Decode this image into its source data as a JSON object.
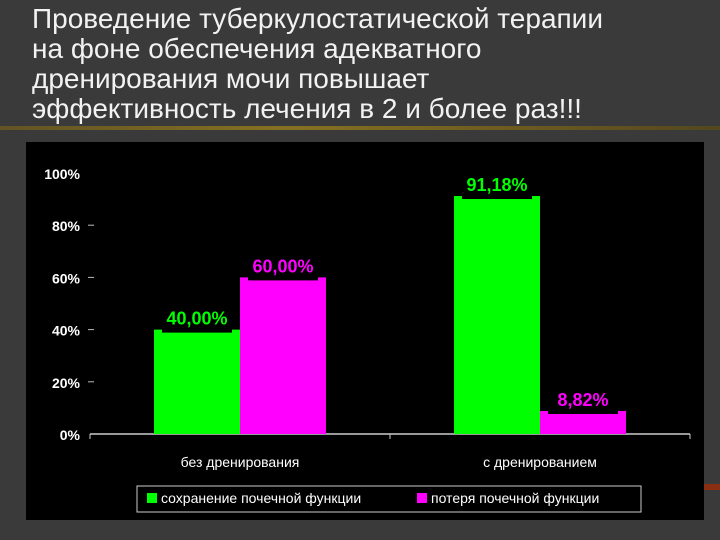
{
  "slide": {
    "title_lines": [
      "Проведение туберкулостатической терапии",
      "на фоне обеспечения адекватного",
      "дренирования мочи повышает",
      "эффективность лечения в 2 и более раз!!!"
    ]
  },
  "chart_data": {
    "type": "bar",
    "categories": [
      "без дренирования",
      "с дренированием"
    ],
    "series": [
      {
        "name": "сохранение почечной функции",
        "values": [
          40.0,
          91.18
        ],
        "labels": [
          "40,00%",
          "91,18%"
        ],
        "color": "#00ff00"
      },
      {
        "name": "потеря почечной функции",
        "values": [
          60.0,
          8.82
        ],
        "labels": [
          "60,00%",
          "8,82%"
        ],
        "color": "#ff00ff"
      }
    ],
    "y_ticks": [
      "0%",
      "20%",
      "40%",
      "60%",
      "80%",
      "100%"
    ],
    "ylim": [
      0,
      100
    ],
    "grid": false,
    "legend_position": "bottom"
  }
}
